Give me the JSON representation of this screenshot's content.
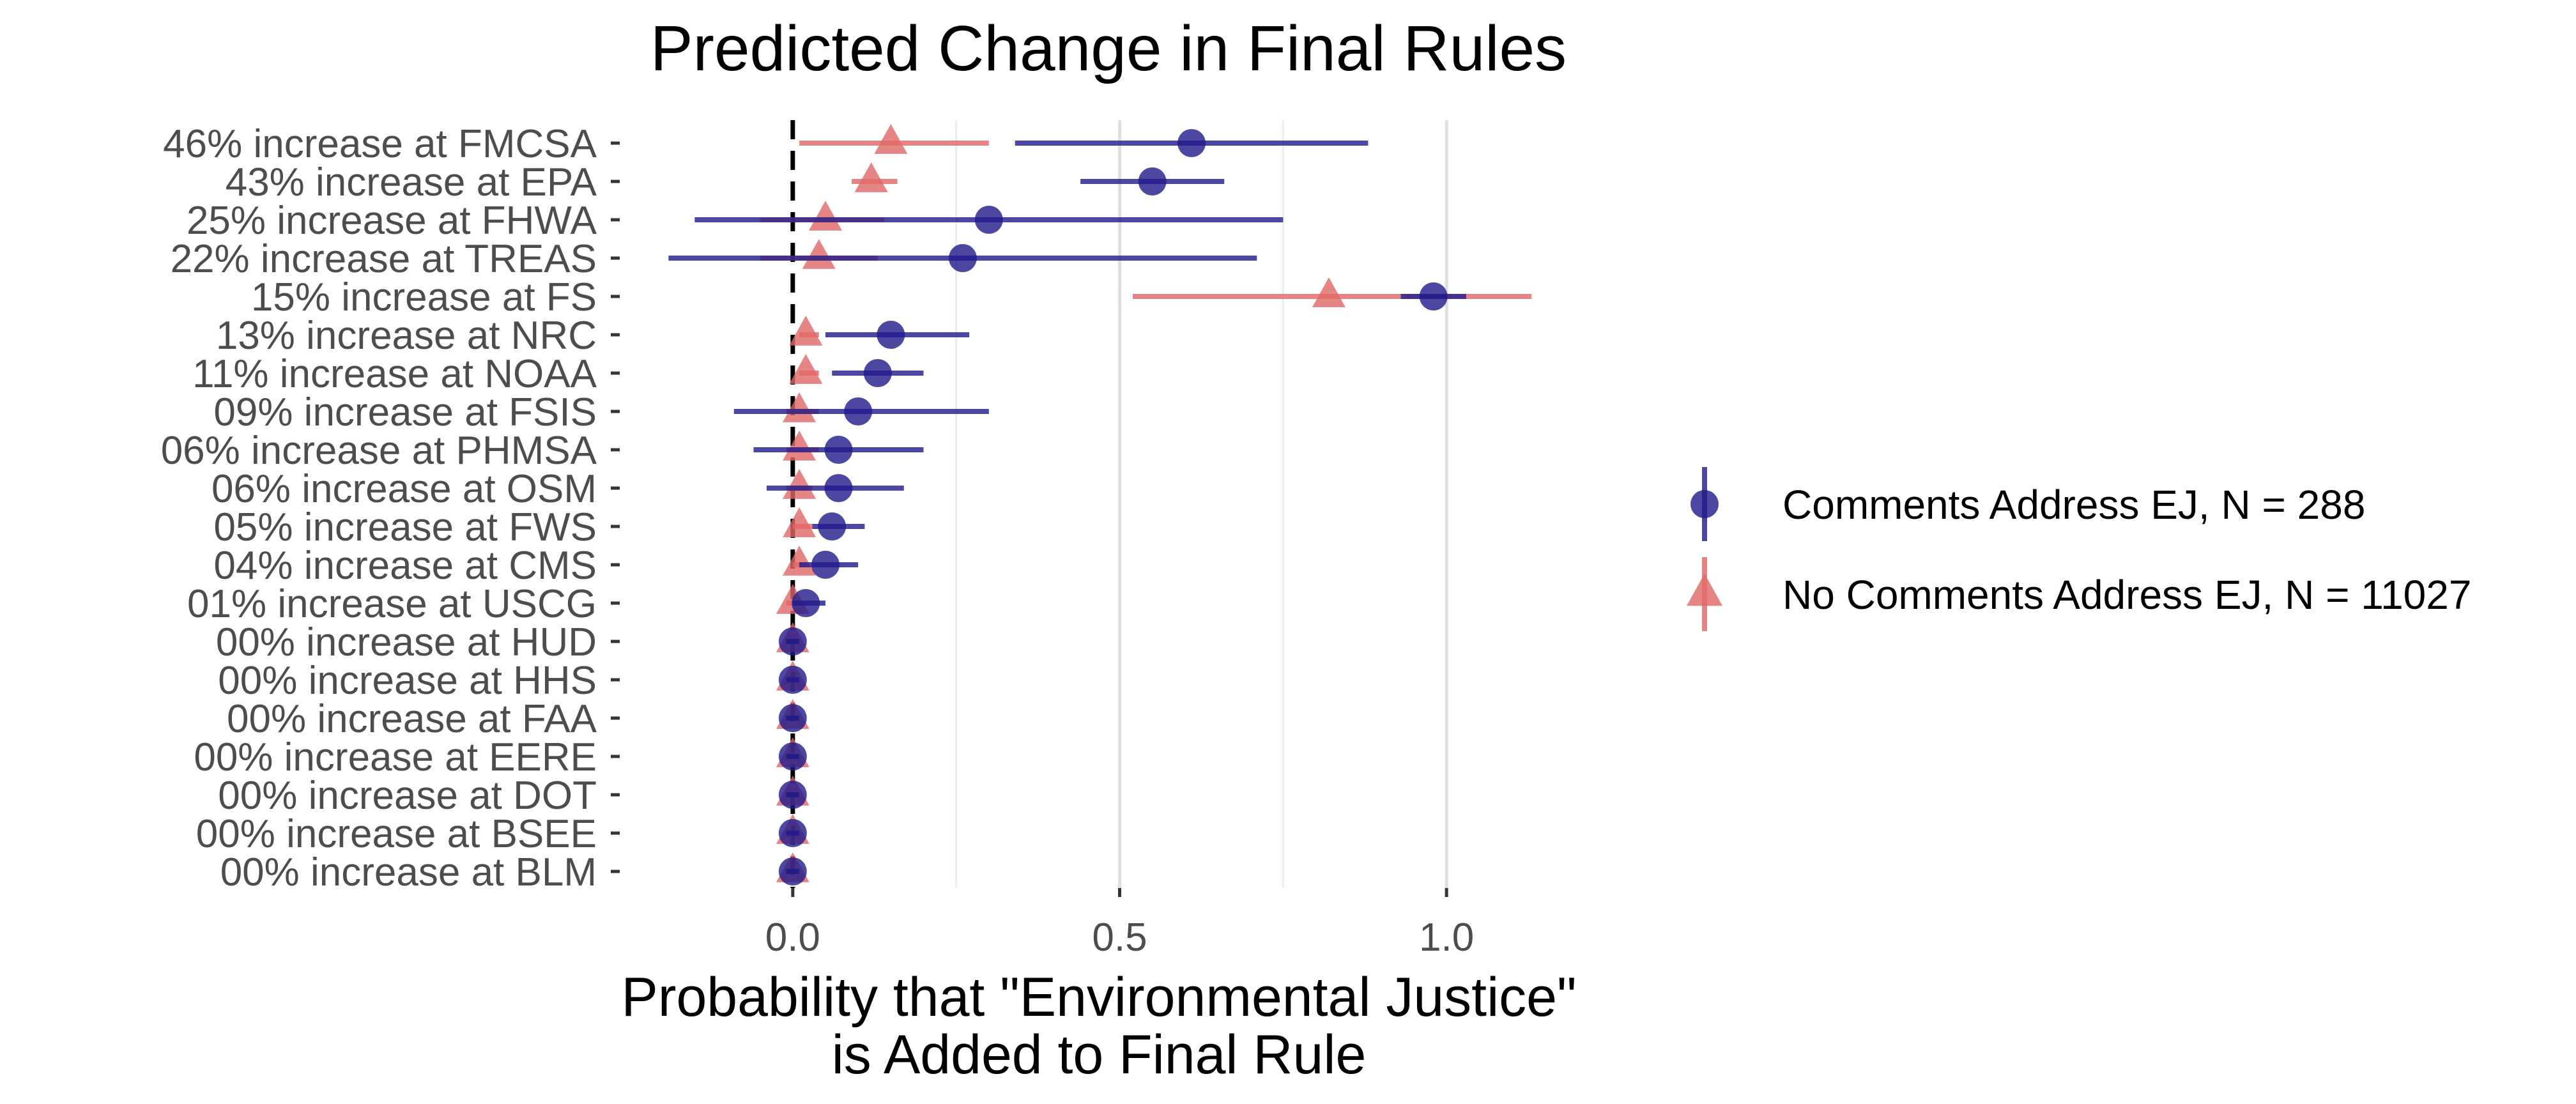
{
  "chart_data": {
    "type": "scatter",
    "title": "Predicted Change in Final Rules",
    "xlabel_lines": [
      "Probability that \"Environmental Justice\"",
      "is Added to Final Rule"
    ],
    "ylabel": "",
    "xlim": [
      -0.25,
      1.25
    ],
    "x_ticks": [
      {
        "value": 0.0,
        "label": "0.0"
      },
      {
        "value": 0.5,
        "label": "0.5"
      },
      {
        "value": 1.0,
        "label": "1.0"
      }
    ],
    "minor_gridlines": [
      0.25,
      0.75
    ],
    "reference_line": {
      "x": 0,
      "style": "dashed",
      "color": "#000000"
    },
    "grid": true,
    "legend_position": "right",
    "categories": [
      "46% increase at FMCSA",
      "43% increase at EPA",
      "25% increase at FHWA",
      "22% increase at TREAS",
      "15% increase at FS",
      "13% increase at NRC",
      "11% increase at NOAA",
      "09% increase at FSIS",
      "06% increase at PHMSA",
      "06% increase at OSM",
      "05% increase at FWS",
      "04% increase at CMS",
      "01% increase at USCG",
      "00% increase at HUD",
      "00% increase at HHS",
      "00% increase at FAA",
      "00% increase at EERE",
      "00% increase at DOT",
      "00% increase at BSEE",
      "00% increase at BLM"
    ],
    "series": [
      {
        "name": "Comments Address EJ, N = 288",
        "marker": "circle",
        "color": "#1f1a8a",
        "values": [
          0.61,
          0.55,
          0.3,
          0.26,
          0.98,
          0.15,
          0.13,
          0.1,
          0.07,
          0.07,
          0.06,
          0.05,
          0.02,
          0.0,
          0.0,
          0.0,
          0.0,
          0.0,
          0.0,
          0.0
        ],
        "lower": [
          0.34,
          0.44,
          -0.15,
          -0.19,
          0.93,
          0.05,
          0.06,
          -0.09,
          -0.06,
          -0.04,
          0.03,
          0.01,
          0.0,
          -0.01,
          -0.01,
          -0.01,
          -0.01,
          -0.01,
          -0.01,
          -0.01
        ],
        "upper": [
          0.88,
          0.66,
          0.75,
          0.71,
          1.03,
          0.27,
          0.2,
          0.3,
          0.2,
          0.17,
          0.11,
          0.1,
          0.05,
          0.01,
          0.01,
          0.01,
          0.01,
          0.01,
          0.01,
          0.01
        ]
      },
      {
        "name": "No Comments Address EJ, N = 11027",
        "marker": "triangle",
        "color": "#e06666",
        "values": [
          0.15,
          0.12,
          0.05,
          0.04,
          0.82,
          0.02,
          0.02,
          0.01,
          0.01,
          0.01,
          0.01,
          0.01,
          0.0,
          0.0,
          0.0,
          0.0,
          0.0,
          0.0,
          0.0,
          0.0
        ],
        "lower": [
          0.01,
          0.09,
          -0.05,
          -0.05,
          0.52,
          0.01,
          0.01,
          -0.01,
          -0.01,
          -0.01,
          0.0,
          0.0,
          -0.01,
          -0.01,
          -0.01,
          -0.01,
          -0.01,
          -0.01,
          -0.01,
          -0.01
        ],
        "upper": [
          0.3,
          0.16,
          0.14,
          0.13,
          1.13,
          0.04,
          0.04,
          0.04,
          0.04,
          0.03,
          0.03,
          0.02,
          0.01,
          0.01,
          0.01,
          0.01,
          0.01,
          0.01,
          0.01,
          0.01
        ]
      }
    ]
  }
}
